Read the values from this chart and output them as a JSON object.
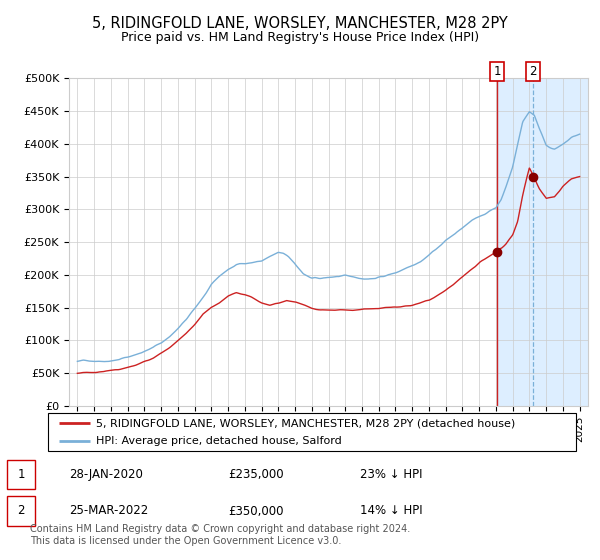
{
  "title1": "5, RIDINGFOLD LANE, WORSLEY, MANCHESTER, M28 2PY",
  "title2": "Price paid vs. HM Land Registry's House Price Index (HPI)",
  "ylim": [
    0,
    500000
  ],
  "yticks": [
    0,
    50000,
    100000,
    150000,
    200000,
    250000,
    300000,
    350000,
    400000,
    450000,
    500000
  ],
  "ytick_labels": [
    "£0",
    "£50K",
    "£100K",
    "£150K",
    "£200K",
    "£250K",
    "£300K",
    "£350K",
    "£400K",
    "£450K",
    "£500K"
  ],
  "hpi_color": "#7ab0d8",
  "price_color": "#cc2222",
  "marker_color": "#880000",
  "line1_color": "#cc2222",
  "line2_color": "#aaccee",
  "shade_color": "#ddeeff",
  "grid_color": "#cccccc",
  "bg_color": "#ffffff",
  "transaction1_date": 2020.07,
  "transaction1_price": 235000,
  "transaction2_date": 2022.22,
  "transaction2_price": 350000,
  "transaction1_label": "28-JAN-2020",
  "transaction1_amount": "£235,000",
  "transaction1_hpi": "23% ↓ HPI",
  "transaction2_label": "25-MAR-2022",
  "transaction2_amount": "£350,000",
  "transaction2_hpi": "14% ↓ HPI",
  "legend1": "5, RIDINGFOLD LANE, WORSLEY, MANCHESTER, M28 2PY (detached house)",
  "legend2": "HPI: Average price, detached house, Salford",
  "footnote": "Contains HM Land Registry data © Crown copyright and database right 2024.\nThis data is licensed under the Open Government Licence v3.0.",
  "title_fontsize": 10.5,
  "subtitle_fontsize": 9,
  "tick_fontsize": 8,
  "legend_fontsize": 8,
  "table_fontsize": 8.5,
  "footnote_fontsize": 7
}
